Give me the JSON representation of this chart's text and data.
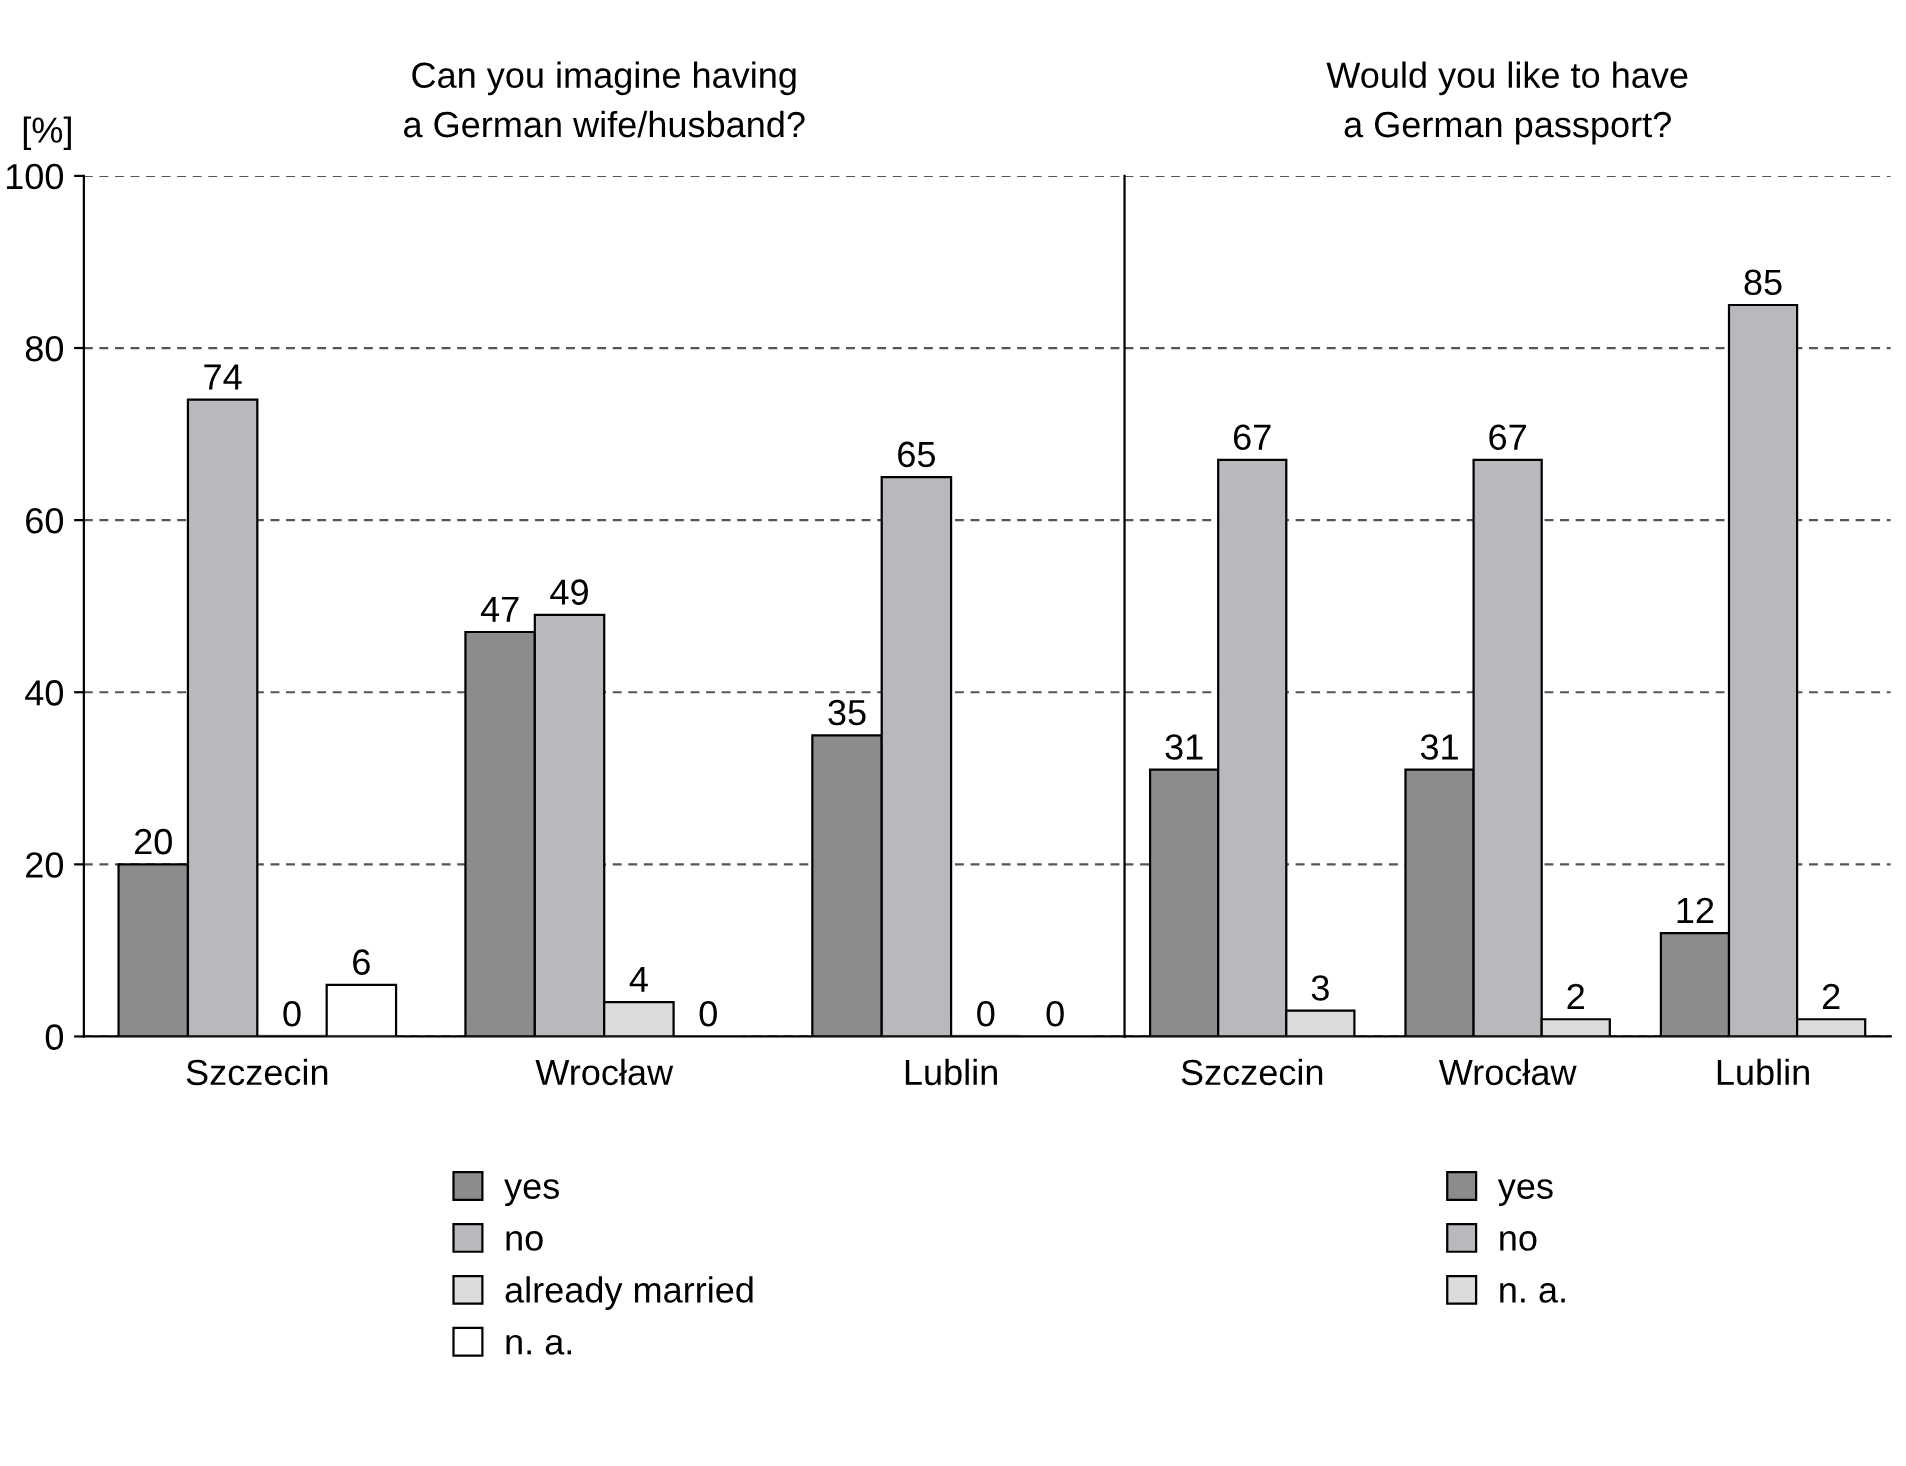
{
  "chart_data": [
    {
      "type": "bar",
      "title": "Can you imagine having\na German wife/husband?",
      "ylabel": "[%]",
      "categories": [
        "Szczecin",
        "Wrocław",
        "Lublin"
      ],
      "series": [
        {
          "name": "yes",
          "color": "#8c8c8e",
          "values": [
            20,
            47,
            35
          ]
        },
        {
          "name": "no",
          "color": "#b9b9bd",
          "values": [
            74,
            49,
            65
          ]
        },
        {
          "name": "already married",
          "color": "#dcdcdc",
          "values": [
            0,
            4,
            0
          ]
        },
        {
          "name": "n. a.",
          "color": "#ffffff",
          "values": [
            6,
            0,
            0
          ]
        }
      ],
      "ylim": [
        0,
        100
      ],
      "yticks": [
        0,
        20,
        40,
        60,
        80,
        100
      ],
      "grid": "y",
      "legend": "bottom",
      "data_labels": true
    },
    {
      "type": "bar",
      "title": "Would you like to have\na German passport?",
      "categories": [
        "Szczecin",
        "Wrocław",
        "Lublin"
      ],
      "series": [
        {
          "name": "yes",
          "color": "#8c8c8e",
          "values": [
            31,
            31,
            12
          ]
        },
        {
          "name": "no",
          "color": "#b9b9bd",
          "values": [
            67,
            67,
            85
          ]
        },
        {
          "name": "n. a.",
          "color": "#dcdcdc",
          "values": [
            3,
            2,
            2
          ]
        }
      ],
      "ylim": [
        0,
        100
      ],
      "yticks": [
        0,
        20,
        40,
        60,
        80,
        100
      ],
      "grid": "y",
      "legend": "bottom",
      "data_labels": true,
      "tick_labels": "x"
    }
  ]
}
